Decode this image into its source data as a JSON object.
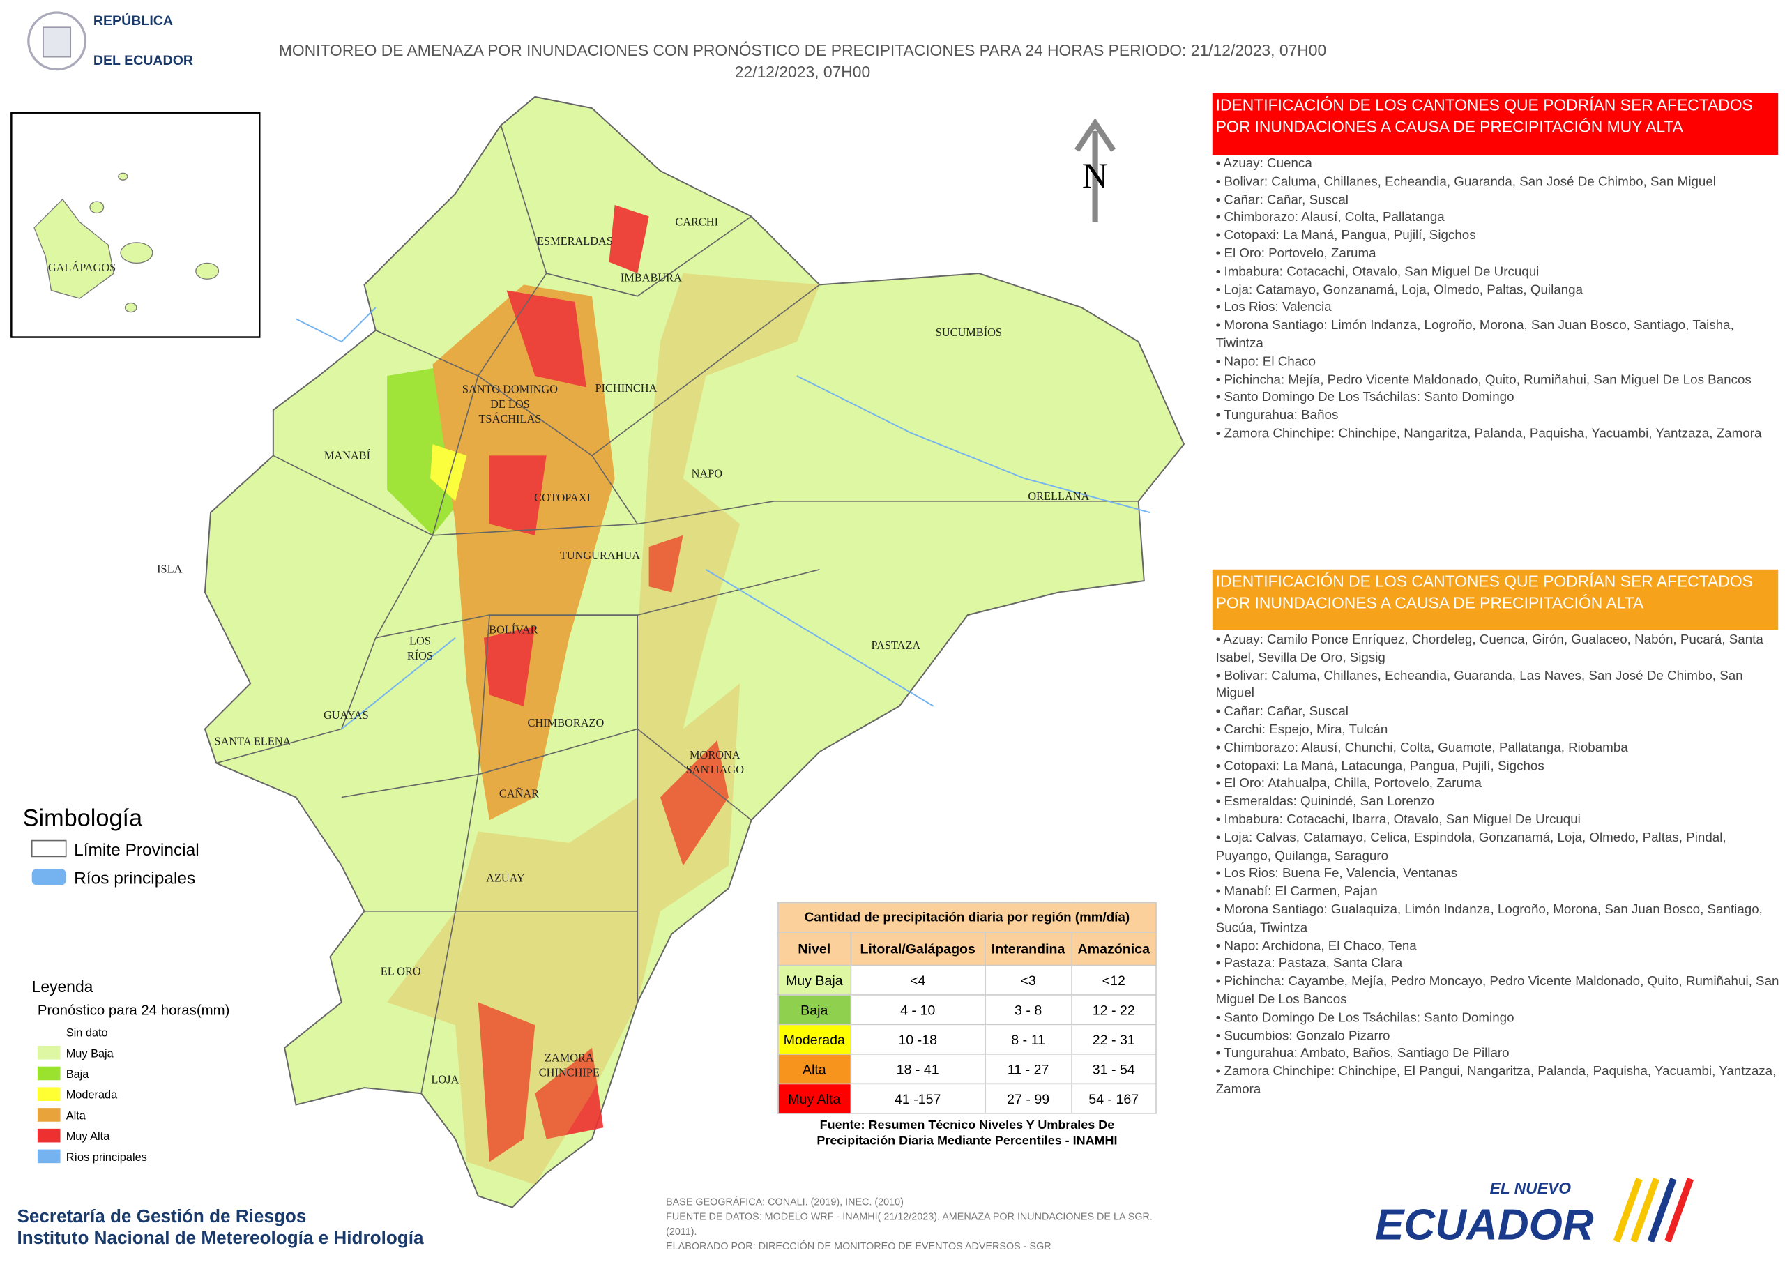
{
  "header": {
    "logo_text": [
      "REPÚBLICA",
      "DEL ECUADOR"
    ],
    "title": [
      "MONITOREO DE AMENAZA POR INUNDACIONES  CON PRONÓSTICO DE  PRECIPITACIONES PARA 24 HORAS  PERIODO: 21/12/2023, 07H00",
      "22/12/2023, 07H00"
    ]
  },
  "map": {
    "north": "N",
    "inset_label": "GALÁPAGOS",
    "provinces": [
      [
        "ESMERALDAS"
      ],
      [
        "CARCHI"
      ],
      [
        "IMBABURA"
      ],
      [
        "SUCUMBÍOS"
      ],
      [
        "SANTO DOMINGO",
        "DE LOS",
        "TSÁCHILAS"
      ],
      [
        "PICHINCHA"
      ],
      [
        "MANABÍ"
      ],
      [
        "NAPO"
      ],
      [
        "ORELLANA"
      ],
      [
        "COTOPAXI"
      ],
      [
        "TUNGURAHUA"
      ],
      [
        "ISLA"
      ],
      [
        "BOLÍVAR"
      ],
      [
        "LOS",
        "RÍOS"
      ],
      [
        "PASTAZA"
      ],
      [
        "GUAYAS"
      ],
      [
        "CHIMBORAZO"
      ],
      [
        "SANTA ELENA"
      ],
      [
        "MORONA",
        "SANTIAGO"
      ],
      [
        "CAÑAR"
      ],
      [
        "AZUAY"
      ],
      [
        "EL ORO"
      ],
      [
        "ZAMORA",
        "CHINCHIPE"
      ],
      [
        "LOJA"
      ]
    ]
  },
  "simbologia": {
    "title": "Simbología",
    "items": [
      "Límite Provincial",
      "Ríos principales"
    ]
  },
  "leyenda": {
    "title": "Leyenda",
    "subtitle": "Pronóstico para 24 horas(mm)",
    "items": [
      {
        "label": "Sin dato",
        "color": "#ffffff"
      },
      {
        "label": "Muy Baja",
        "color": "#ddf7a3"
      },
      {
        "label": "Baja",
        "color": "#9be22e"
      },
      {
        "label": "Moderada",
        "color": "#ffff33"
      },
      {
        "label": "Alta",
        "color": "#e8a33a"
      },
      {
        "label": "Muy Alta",
        "color": "#ee3030"
      },
      {
        "label": "Ríos principales",
        "color": "#74b3f0"
      }
    ]
  },
  "table": {
    "title": "Cantidad de precipitación diaria por región (mm/día)",
    "headers": [
      "Nivel",
      "Litoral/Galápagos",
      "Interandina",
      "Amazónica"
    ],
    "rows": [
      [
        "Muy Baja",
        "<4",
        "<3",
        "<12"
      ],
      [
        "Baja",
        "4 - 10",
        "3 - 8",
        "12 - 22"
      ],
      [
        "Moderada",
        "10 -18",
        "8 - 11",
        "22 - 31"
      ],
      [
        "Alta",
        "18 - 41",
        "11 - 27",
        "31 - 54"
      ],
      [
        "Muy Alta",
        "41 -157",
        "27 - 99",
        "54 - 167"
      ]
    ],
    "row_colors": [
      "#ddf7a3",
      "#8fd14f",
      "#ffff00",
      "#f7941d",
      "#ff0000"
    ],
    "source": [
      "Fuente: Resumen Técnico Niveles Y Umbrales De",
      "Precipitación Diaria Mediante Percentiles - INAMHI"
    ]
  },
  "panels": [
    {
      "heading": [
        "IDENTIFICACIÓN DE LOS CANTONES QUE PODRÍAN SER AFECTADOS",
        "POR INUNDACIONES  A CAUSA DE PRECIPITACIÓN MUY ALTA"
      ],
      "color": "#ff0000",
      "items": [
        "Azuay: Cuenca",
        "Bolivar: Caluma, Chillanes, Echeandia, Guaranda, San José De Chimbo, San Miguel",
        "Cañar: Cañar, Suscal",
        "Chimborazo: Alausí, Colta, Pallatanga",
        "Cotopaxi: La Maná, Pangua, Pujilí, Sigchos",
        "El Oro: Portovelo, Zaruma",
        "Imbabura: Cotacachi, Otavalo, San Miguel De Urcuqui",
        "Loja: Catamayo, Gonzanamá, Loja, Olmedo, Paltas, Quilanga",
        "Los Rios: Valencia",
        "Morona Santiago: Limón Indanza, Logroño, Morona, San Juan Bosco, Santiago, Taisha, Tiwintza",
        "Napo: El Chaco",
        "Pichincha: Mejía, Pedro Vicente Maldonado, Quito, Rumiñahui, San Miguel De Los Bancos",
        "Santo Domingo De Los Tsáchilas: Santo Domingo",
        "Tungurahua: Baños",
        "Zamora Chinchipe: Chinchipe, Nangaritza, Palanda, Paquisha, Yacuambi, Yantzaza, Zamora"
      ]
    },
    {
      "heading": [
        "IDENTIFICACIÓN DE LOS CANTONES QUE  PODRÍAN SER AFECTADOS",
        "POR INUNDACIONES  A CAUSA DE PRECIPITACIÓN  ALTA"
      ],
      "color": "#f7a21b",
      "items": [
        "Azuay: Camilo Ponce Enríquez, Chordeleg, Cuenca, Girón, Gualaceo, Nabón, Pucará, Santa Isabel, Sevilla De Oro, Sigsig",
        "Bolivar: Caluma, Chillanes, Echeandia, Guaranda, Las Naves, San José De Chimbo, San Miguel",
        "Cañar: Cañar, Suscal",
        "Carchi: Espejo, Mira, Tulcán",
        "Chimborazo: Alausí, Chunchi, Colta, Guamote, Pallatanga, Riobamba",
        "Cotopaxi: La Maná, Latacunga, Pangua, Pujilí, Sigchos",
        "El Oro: Atahualpa, Chilla, Portovelo, Zaruma",
        "Esmeraldas: Quinindé, San Lorenzo",
        "Imbabura: Cotacachi, Ibarra, Otavalo, San Miguel De Urcuqui",
        "Loja: Calvas, Catamayo, Celica, Espindola, Gonzanamá, Loja, Olmedo, Paltas, Pindal, Puyango, Quilanga, Saraguro",
        "Los Rios: Buena Fe, Valencia, Ventanas",
        "Manabí: El Carmen, Pajan",
        "Morona Santiago: Gualaquiza, Limón Indanza, Logroño, Morona, San Juan Bosco, Santiago, Sucúa, Tiwintza",
        "Napo: Archidona, El Chaco, Tena",
        "Pastaza: Pastaza, Santa Clara",
        "Pichincha: Cayambe, Mejía, Pedro Moncayo, Pedro Vicente Maldonado, Quito, Rumiñahui, San Miguel De Los Bancos",
        "Santo Domingo De Los Tsáchilas: Santo Domingo",
        "Sucumbios: Gonzalo Pizarro",
        "Tungurahua: Ambato, Baños, Santiago De Pillaro",
        "Zamora Chinchipe: Chinchipe, El Pangui, Nangaritza, Palanda, Paquisha, Yacuambi, Yantzaza, Zamora"
      ]
    }
  ],
  "footer": {
    "org": [
      "Secretaría de Gestión de Riesgos",
      "Instituto Nacional de Metereología e Hidrología"
    ],
    "notes": [
      "BASE GEOGRÁFICA: CONALI. (2019), INEC. (2010)",
      "FUENTE DE DATOS: MODELO WRF - INAMHI( 21/12/2023).  AMENAZA POR INUNDACIONES DE LA SGR. (2011).",
      "ELABORADO POR: DIRECCIÓN DE MONITOREO DE EVENTOS ADVERSOS - SGR"
    ],
    "brand": [
      "EL NUEVO",
      "ECUADOR"
    ]
  }
}
